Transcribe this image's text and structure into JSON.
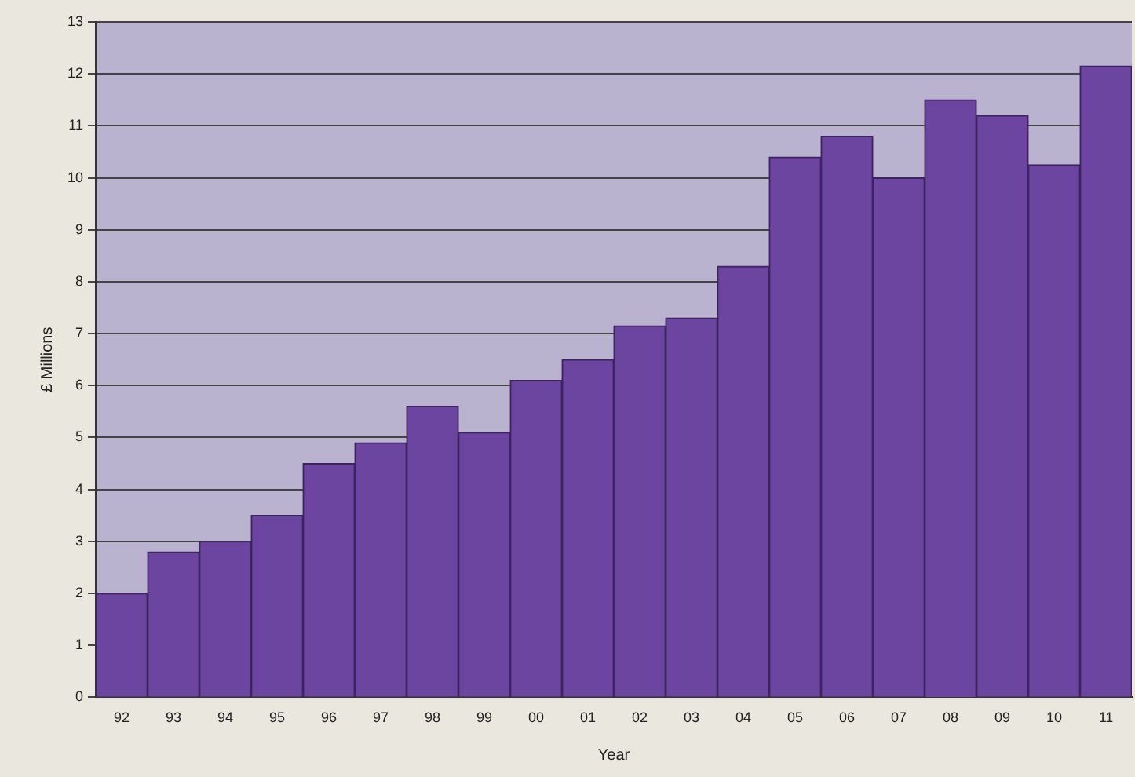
{
  "chart_data": {
    "type": "bar",
    "xlabel": "Year",
    "ylabel": "£ Millions",
    "categories": [
      "92",
      "93",
      "94",
      "95",
      "96",
      "97",
      "98",
      "99",
      "00",
      "01",
      "02",
      "03",
      "04",
      "05",
      "06",
      "07",
      "08",
      "09",
      "10",
      "11"
    ],
    "values": [
      2.0,
      2.8,
      3.0,
      3.5,
      4.5,
      4.9,
      5.6,
      5.1,
      6.1,
      6.5,
      7.15,
      7.3,
      8.3,
      10.4,
      10.8,
      10.0,
      11.5,
      11.2,
      10.25,
      12.15
    ],
    "color": "#6b45a0",
    "ylim": [
      0,
      13
    ],
    "yticks": [
      0,
      1,
      2,
      3,
      4,
      5,
      6,
      7,
      8,
      9,
      10,
      11,
      12,
      13
    ],
    "grid": "y",
    "legend": false
  }
}
